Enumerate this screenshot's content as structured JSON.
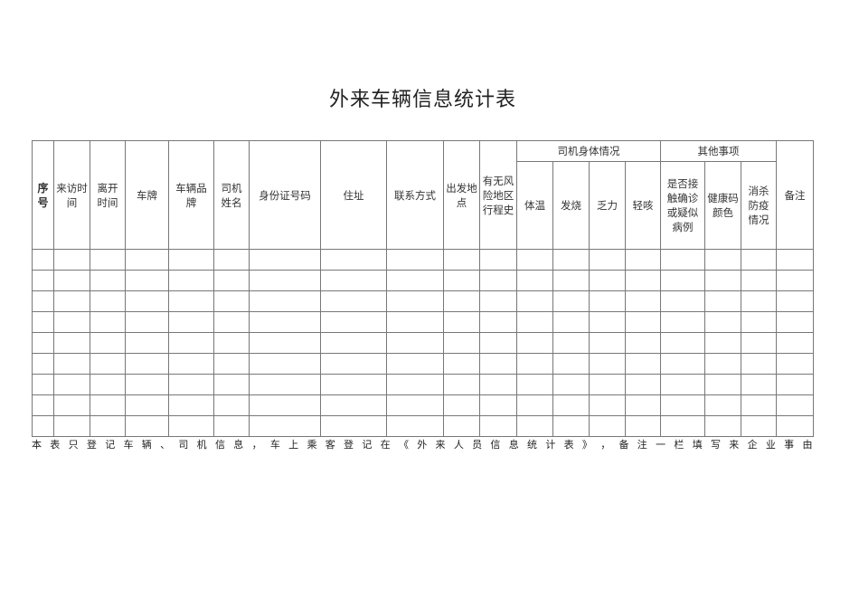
{
  "title": "外来车辆信息统计表",
  "headers": {
    "seq": "序号",
    "visit_time": "来访时间",
    "leave_time": "离开时间",
    "plate": "车牌",
    "brand": "车辆品牌",
    "driver_name": "司机姓名",
    "id_number": "身份证号码",
    "address": "住址",
    "contact": "联系方式",
    "departure": "出发地点",
    "risk_travel": "有无风险地区行程史",
    "driver_health": "司机身体情况",
    "temperature": "体温",
    "fever": "发烧",
    "fatigue": "乏力",
    "cough": "轻咳",
    "other": "其他事项",
    "contact_case": "是否接触确诊或疑似病例",
    "health_code": "健康码颜色",
    "disinfection": "消杀防疫情况",
    "remarks": "备注"
  },
  "row_count": 9,
  "note": "本表只登记车辆、司机信息，车上乘客登记在《外来人员信息统计表》，备注一栏填写来企业事由"
}
